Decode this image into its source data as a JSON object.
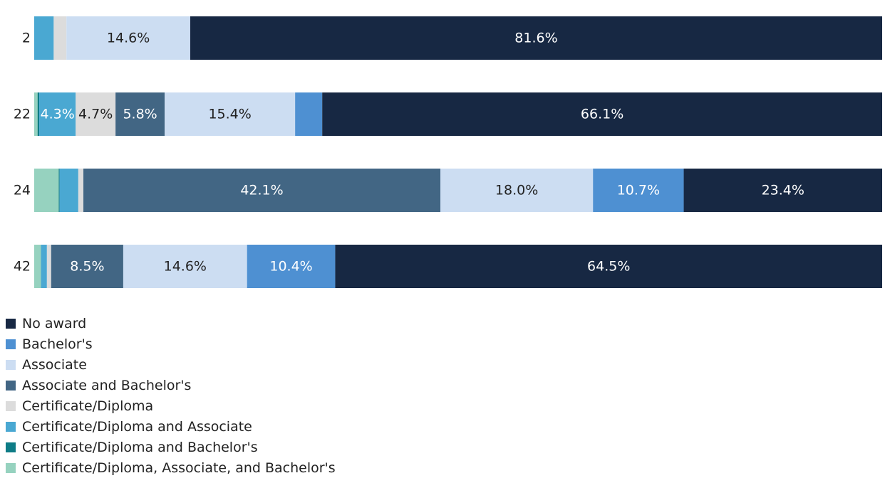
{
  "chart_data": {
    "type": "bar",
    "orientation": "horizontal",
    "stacked": true,
    "normalized": true,
    "categories": [
      "2",
      "22",
      "24",
      "42"
    ],
    "series": [
      {
        "name": "Certificate/Diploma, Associate, and Bachelor's",
        "color": "#96d2bf",
        "values": [
          0.0,
          0.4,
          2.9,
          0.8
        ]
      },
      {
        "name": "Certificate/Diploma and Bachelor's",
        "color": "#0e7c86",
        "values": [
          0.0,
          0.2,
          0.1,
          0.0
        ]
      },
      {
        "name": "Certificate/Diploma and Associate",
        "color": "#4aa8d2",
        "values": [
          2.3,
          4.3,
          2.2,
          0.7
        ]
      },
      {
        "name": "Certificate/Diploma",
        "color": "#dcdcdc",
        "values": [
          1.5,
          4.7,
          0.6,
          0.5
        ]
      },
      {
        "name": "Associate and Bachelor's",
        "color": "#426684",
        "values": [
          0.0,
          5.8,
          42.1,
          8.5
        ]
      },
      {
        "name": "Associate",
        "color": "#ccddf2",
        "values": [
          14.6,
          15.4,
          18.0,
          14.6
        ]
      },
      {
        "name": "Bachelor's",
        "color": "#4e90d2",
        "values": [
          0.0,
          3.2,
          10.7,
          10.4
        ]
      },
      {
        "name": "No award",
        "color": "#172843",
        "values": [
          81.6,
          66.1,
          23.4,
          64.5
        ]
      }
    ],
    "labels": [
      [
        "",
        "",
        "",
        "",
        "",
        "14.6%",
        "",
        "81.6%"
      ],
      [
        "",
        "",
        "4.3%",
        "4.7%",
        "5.8%",
        "15.4%",
        "",
        "66.1%"
      ],
      [
        "",
        "",
        "",
        "",
        "42.1%",
        "18.0%",
        "10.7%",
        "23.4%"
      ],
      [
        "",
        "",
        "",
        "",
        "8.5%",
        "14.6%",
        "10.4%",
        "64.5%"
      ]
    ],
    "xlim": [
      0,
      100
    ],
    "title": "",
    "xlabel": "",
    "ylabel": ""
  },
  "legend": {
    "items": [
      {
        "label": "No award",
        "color": "#172843"
      },
      {
        "label": "Bachelor's",
        "color": "#4e90d2"
      },
      {
        "label": "Associate",
        "color": "#ccddf2"
      },
      {
        "label": "Associate and Bachelor's",
        "color": "#426684"
      },
      {
        "label": "Certificate/Diploma",
        "color": "#dcdcdc"
      },
      {
        "label": "Certificate/Diploma and Associate",
        "color": "#4aa8d2"
      },
      {
        "label": "Certificate/Diploma and Bachelor's",
        "color": "#0e7c86"
      },
      {
        "label": "Certificate/Diploma, Associate, and Bachelor's",
        "color": "#96d2bf"
      }
    ]
  },
  "label_colors": {
    "dark": "#ffffff",
    "light": "#222222"
  }
}
